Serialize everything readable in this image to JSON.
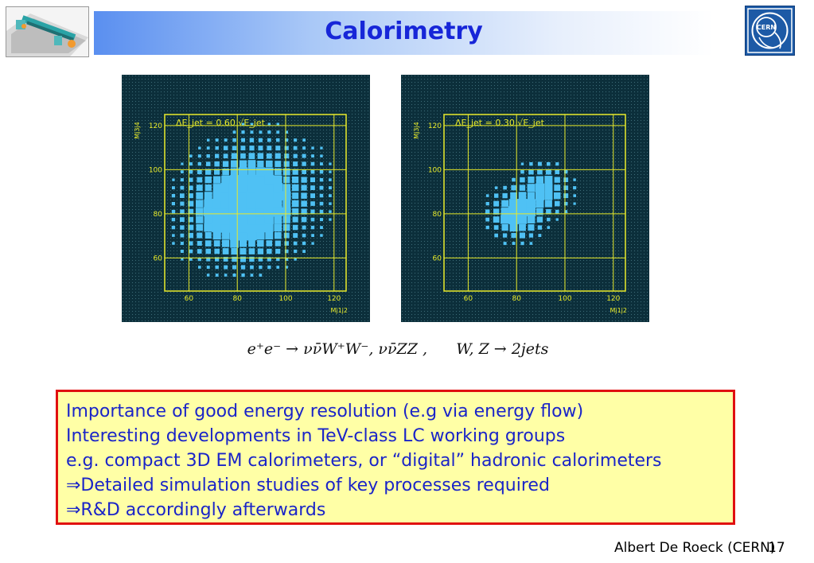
{
  "slide": {
    "title": "Calorimetry",
    "author": "Albert De Roeck (CERN)",
    "page_number": "17"
  },
  "formula": {
    "text": "e⁺e⁻ → νν̄W⁺W⁻, νν̄ZZ ,",
    "decay": "W, Z → 2jets"
  },
  "notes": [
    "Importance of good energy resolution (e.g via energy flow)",
    "Interesting developments in TeV-class LC working groups",
    "e.g. compact 3D EM calorimeters, or “digital” hadronic calorimeters",
    "⇒Detailed simulation studies of key processes required",
    "⇒R&D accordingly afterwards"
  ],
  "colors": {
    "title": "#1726d8",
    "note_text": "#1a24c8",
    "note_bg": "#ffffa6",
    "note_border": "#e01010",
    "plot_bg": "#0c2f3b",
    "plot_frame": "#e8ea2a",
    "plot_marks": "#4fc1f4"
  },
  "chart_data": [
    {
      "type": "scatter",
      "annotation": "ΔE_jet = 0.60 √E_jet",
      "xlabel": "Mj1j2",
      "ylabel": "Mj3j4",
      "xlim": [
        50,
        125
      ],
      "ylim": [
        45,
        125
      ],
      "xticks": [
        60,
        80,
        100,
        120
      ],
      "yticks": [
        60,
        80,
        100,
        120
      ],
      "grid": true,
      "peaks": [
        {
          "x": 80,
          "y": 80,
          "sigma_x": 11,
          "sigma_y": 11,
          "weight": 1.0
        },
        {
          "x": 90,
          "y": 90,
          "sigma_x": 12,
          "sigma_y": 12,
          "weight": 0.6
        }
      ]
    },
    {
      "type": "scatter",
      "annotation": "ΔE_jet = 0.30 √E_jet",
      "xlabel": "Mj1j2",
      "ylabel": "Mj3j4",
      "xlim": [
        50,
        125
      ],
      "ylim": [
        45,
        125
      ],
      "xticks": [
        60,
        80,
        100,
        120
      ],
      "yticks": [
        60,
        80,
        100,
        120
      ],
      "grid": true,
      "peaks": [
        {
          "x": 80,
          "y": 80,
          "sigma_x": 5.5,
          "sigma_y": 5.5,
          "weight": 1.0
        },
        {
          "x": 91,
          "y": 91,
          "sigma_x": 5.5,
          "sigma_y": 5.5,
          "weight": 0.7
        }
      ]
    }
  ]
}
